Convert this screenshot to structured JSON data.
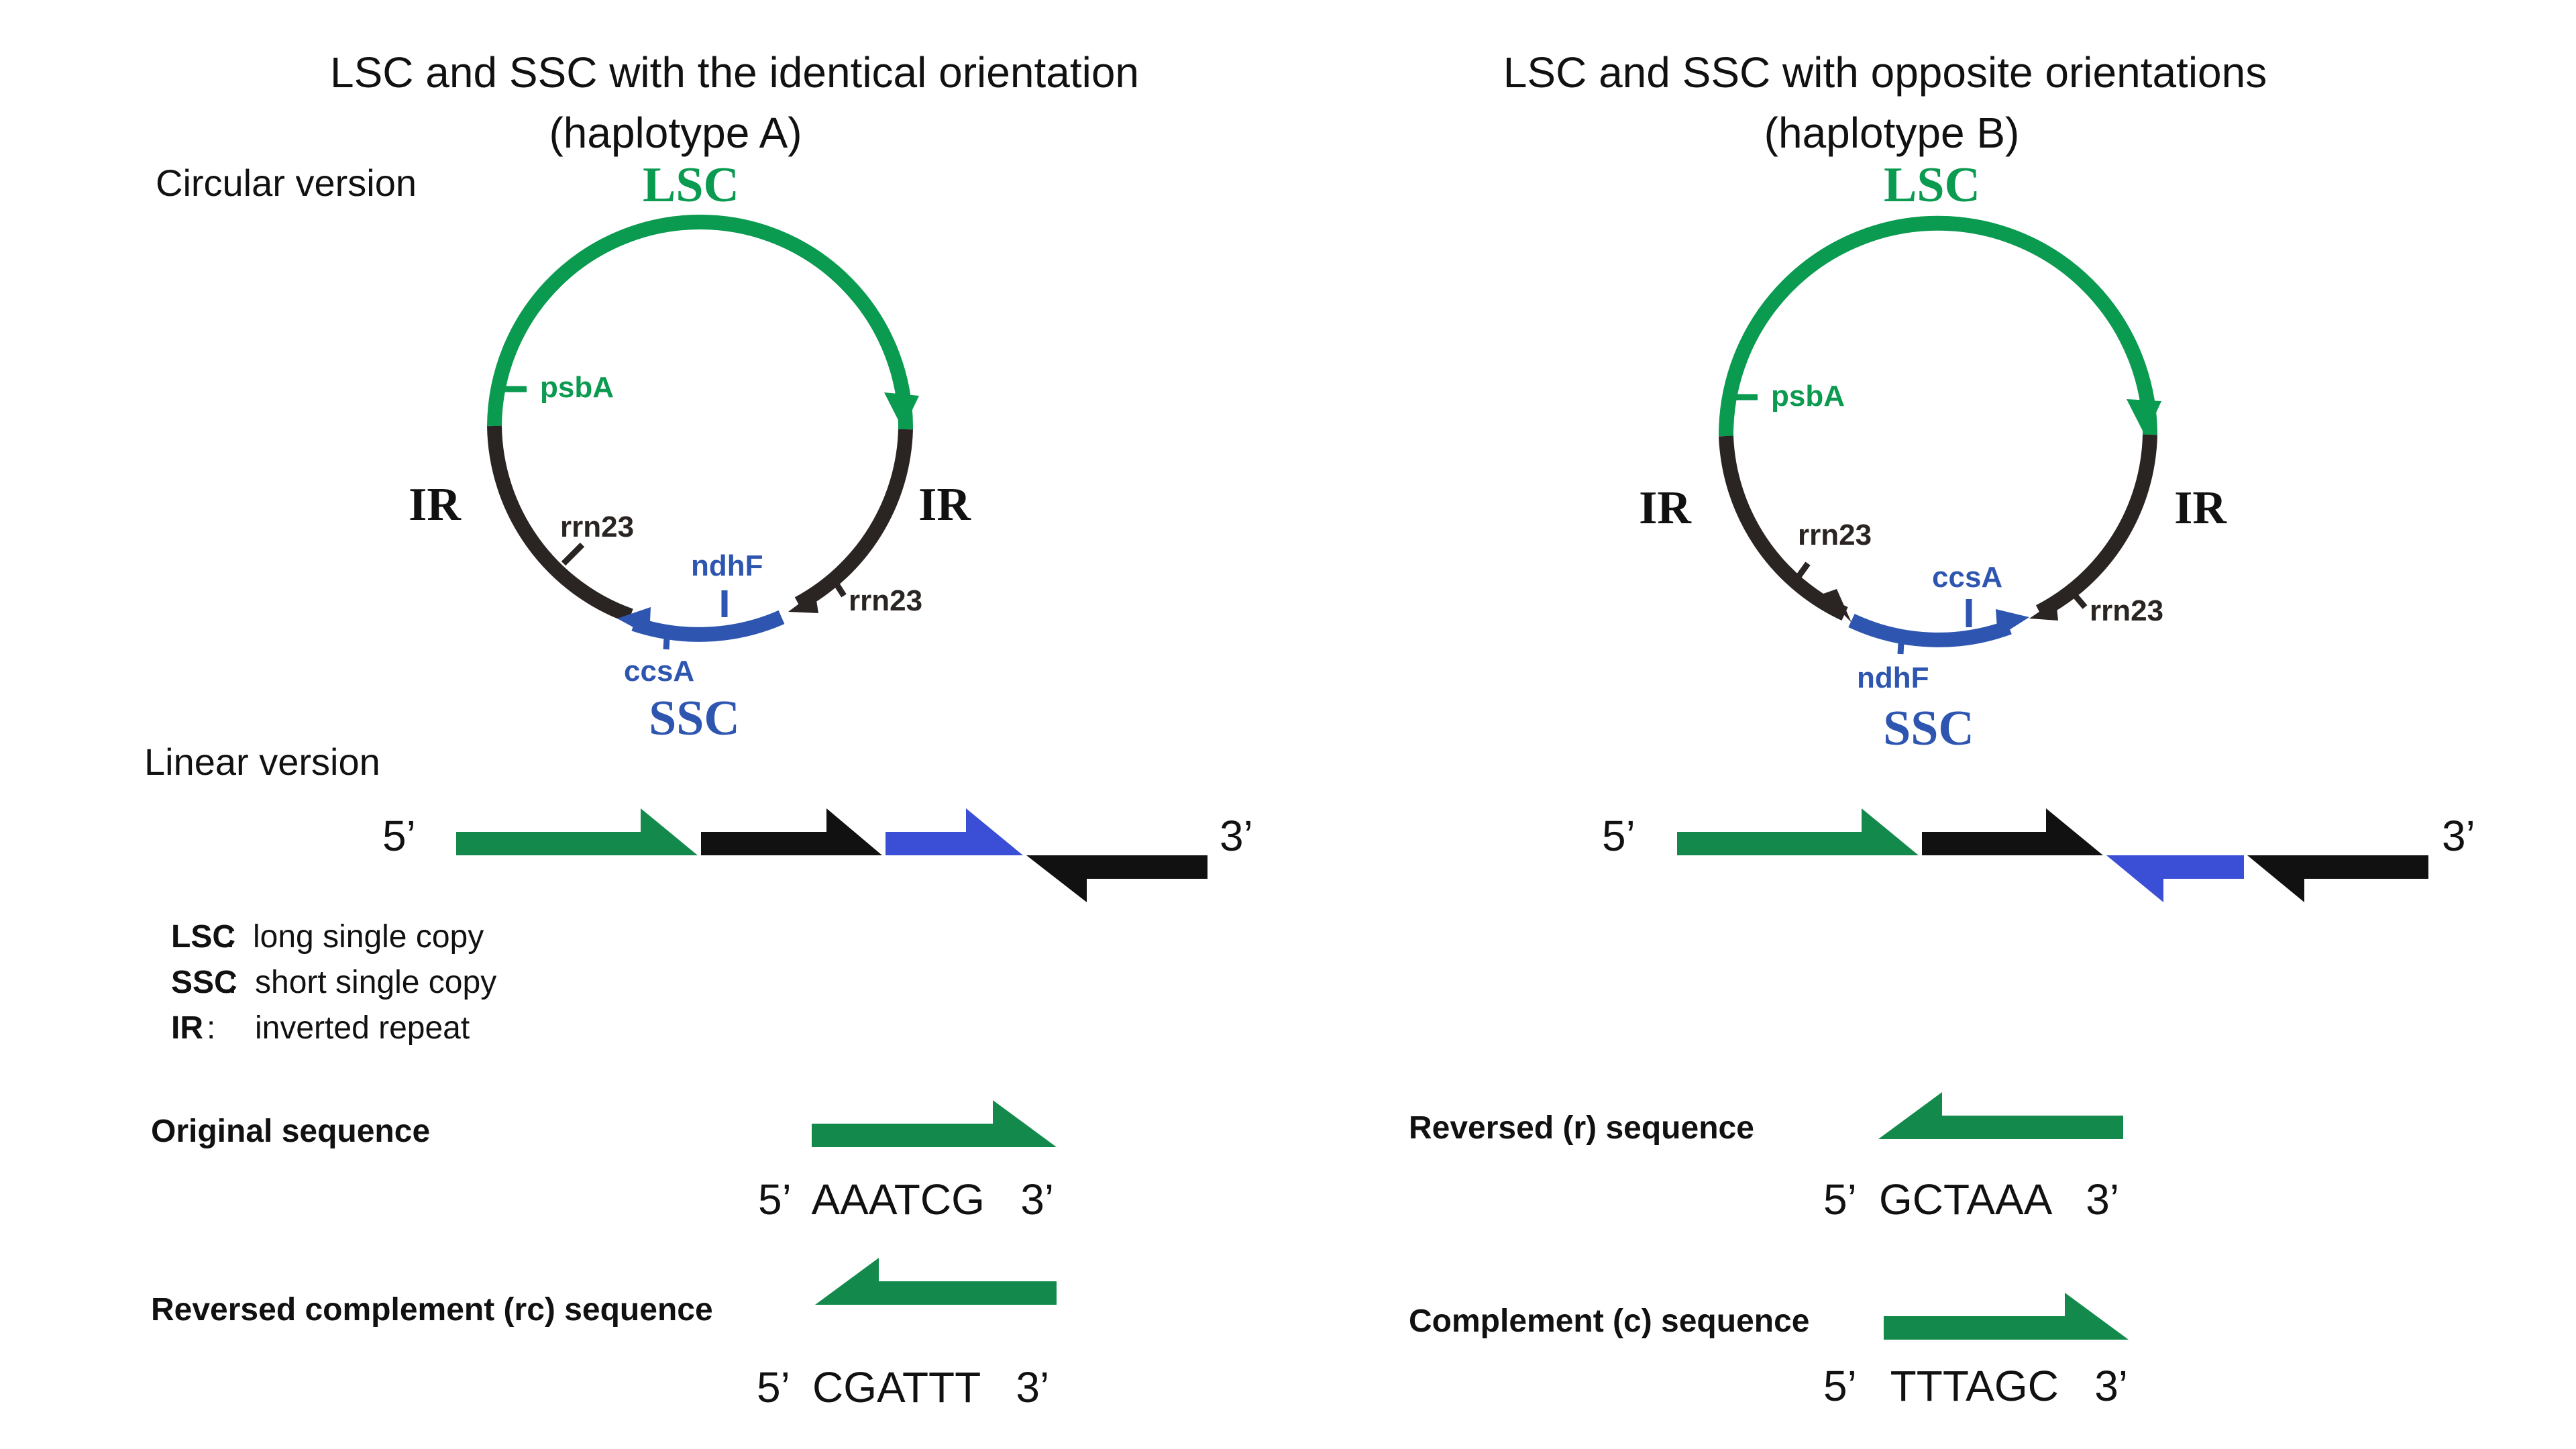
{
  "colors": {
    "green": "#0a9a50",
    "green_dark": "#138a4c",
    "blue": "#2e56b0",
    "blue_bright": "#3a4ed6",
    "black": "#2a2422",
    "text": "#111111"
  },
  "panel_a": {
    "title_line1": "LSC and SSC with the identical orientation",
    "title_line2": "(haplotype A)",
    "circular_label": "Circular version",
    "lsc": "LSC",
    "ssc": "SSC",
    "ir_left": "IR",
    "ir_right": "IR",
    "gene_psba": "psbA",
    "gene_rrn23_left": "rrn23",
    "gene_rrn23_right": "rrn23",
    "gene_ndhf": "ndhF",
    "gene_ccsa": "ccsA",
    "linear_label": "Linear version",
    "five_prime": "5’",
    "three_prime": "3’"
  },
  "panel_b": {
    "title_line1": "LSC and SSC with opposite  orientations",
    "title_line2": "(haplotype B)",
    "lsc": "LSC",
    "ssc": "SSC",
    "ir_left": "IR",
    "ir_right": "IR",
    "gene_psba": "psbA",
    "gene_rrn23_left": "rrn23",
    "gene_rrn23_right": "rrn23",
    "gene_ccsa": "ccsA",
    "gene_ndhf": "ndhF",
    "five_prime": "5’",
    "three_prime": "3’"
  },
  "legend": {
    "lsc_key": "LSC",
    "lsc_desc": "long single copy",
    "ssc_key": "SSC",
    "ssc_desc": "short single copy",
    "ir_key": "IR",
    "ir_desc": "inverted repeat"
  },
  "sequences": {
    "original_label": "Original sequence",
    "original_seq": "5’  AAATCG   3’",
    "rc_label": "Reversed complement (rc) sequence",
    "rc_seq": "5’  CGATTT   3’",
    "r_label": "Reversed (r) sequence",
    "r_seq": "5’  GCTAAA   3’",
    "c_label": "Complement (c) sequence",
    "c_seq": "5’   TTTAGC   3’"
  }
}
